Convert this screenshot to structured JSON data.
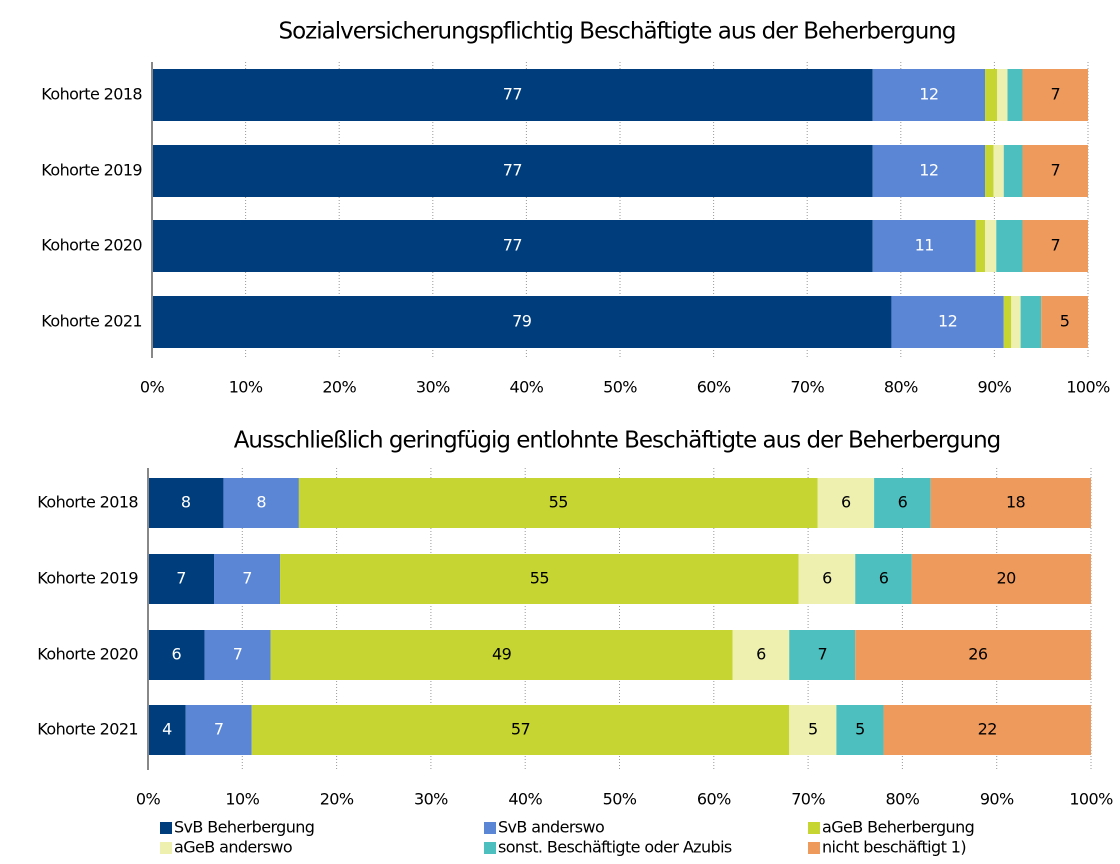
{
  "chart_data": [
    {
      "type": "stacked-bar-horizontal",
      "title": "Sozialversicherungspflichtig Beschäftigte aus der Beherbergung",
      "categories": [
        "Kohorte 2018",
        "Kohorte 2019",
        "Kohorte 2020",
        "Kohorte 2021"
      ],
      "series": [
        {
          "color": "#003d7c",
          "values": [
            77,
            77,
            77,
            79
          ]
        },
        {
          "color": "#5b86d6",
          "values": [
            12,
            12,
            11,
            12
          ]
        },
        {
          "color": "#c6d531",
          "values": [
            1.3,
            0.9,
            1.0,
            0.8
          ]
        },
        {
          "color": "#eef0b0",
          "values": [
            1.1,
            1.1,
            1.2,
            1.0
          ]
        },
        {
          "color": "#4dbfbf",
          "values": [
            1.6,
            2.0,
            2.8,
            2.2
          ]
        },
        {
          "color": "#ef9a5d",
          "values": [
            7,
            7,
            7,
            5
          ]
        }
      ],
      "xlim": [
        0,
        100
      ],
      "xticks": [
        {
          "value": 0,
          "label": "0%"
        },
        {
          "value": 10,
          "label": "10%"
        },
        {
          "value": 20,
          "label": "20%"
        },
        {
          "value": 30,
          "label": "30%"
        },
        {
          "value": 40,
          "label": "40%"
        },
        {
          "value": 50,
          "label": "50%"
        },
        {
          "value": 60,
          "label": "60%"
        },
        {
          "value": 70,
          "label": "70%"
        },
        {
          "value": 80,
          "label": "80%"
        },
        {
          "value": 90,
          "label": "90%"
        },
        {
          "value": 100,
          "label": "100%"
        }
      ],
      "grid": true
    },
    {
      "type": "stacked-bar-horizontal",
      "title": "Ausschließlich geringfügig entlohnte Beschäftigte aus der Beherbergung",
      "categories": [
        "Kohorte 2018",
        "Kohorte 2019",
        "Kohorte 2020",
        "Kohorte 2021"
      ],
      "series": [
        {
          "name": "SvB Beherbergung",
          "color": "#003d7c",
          "values": [
            8,
            7,
            6,
            4
          ]
        },
        {
          "name": "SvB anderswo",
          "color": "#5b86d6",
          "values": [
            8,
            7,
            7,
            7
          ]
        },
        {
          "name": "aGeB Beherbergung",
          "color": "#c6d531",
          "values": [
            55,
            55,
            49,
            57
          ]
        },
        {
          "name": "aGeB anderswo",
          "color": "#eef0b0",
          "values": [
            6,
            6,
            6,
            5
          ]
        },
        {
          "name": "sonst. Beschäftigte oder Azubis",
          "color": "#4dbfbf",
          "values": [
            6,
            6,
            7,
            5
          ]
        },
        {
          "name": "nicht beschäftigt 1)",
          "color": "#ef9a5d",
          "values": [
            18,
            20,
            26,
            22
          ]
        }
      ],
      "xlim": [
        0,
        100
      ],
      "xticks": [
        {
          "value": 0,
          "label": "0%"
        },
        {
          "value": 10,
          "label": "10%"
        },
        {
          "value": 20,
          "label": "20%"
        },
        {
          "value": 30,
          "label": "30%"
        },
        {
          "value": 40,
          "label": "40%"
        },
        {
          "value": 50,
          "label": "50%"
        },
        {
          "value": 60,
          "label": "60%"
        },
        {
          "value": 70,
          "label": "70%"
        },
        {
          "value": 80,
          "label": "80%"
        },
        {
          "value": 90,
          "label": "90%"
        },
        {
          "value": 100,
          "label": "100%"
        }
      ],
      "grid": true
    }
  ]
}
